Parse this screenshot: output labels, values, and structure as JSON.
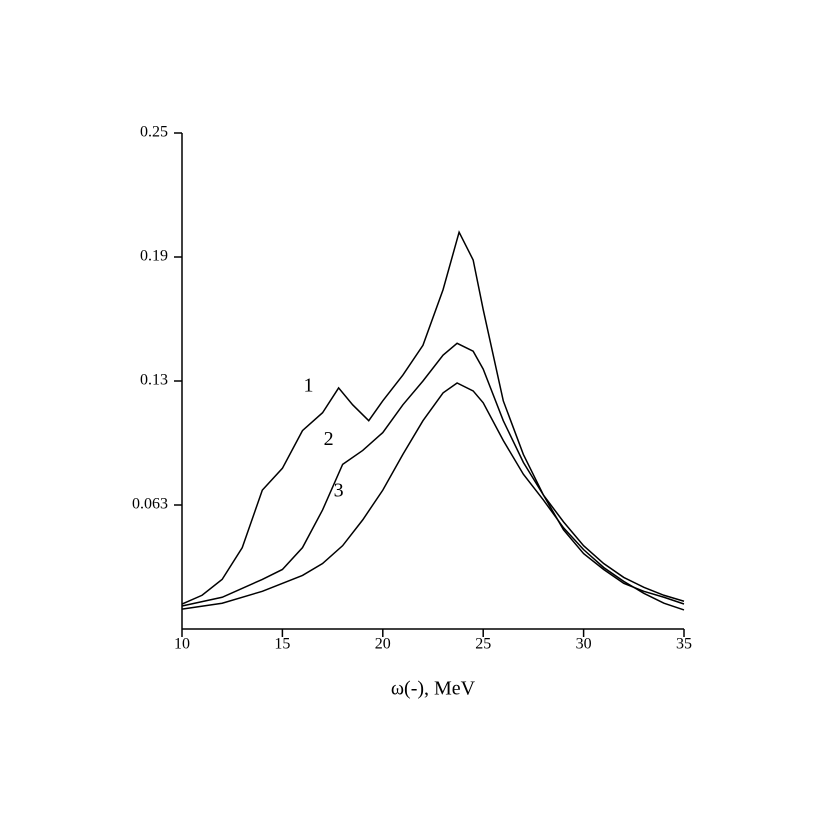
{
  "chart_data": {
    "type": "line",
    "x_label": "ω(-), MeV",
    "xlim": [
      10,
      35
    ],
    "xticks": [
      10,
      15,
      20,
      25,
      30,
      35
    ],
    "ylim": [
      0,
      0.25
    ],
    "yticks": [
      {
        "value": 0.0625,
        "label": "0.063"
      },
      {
        "value": 0.125,
        "label": "0.13"
      },
      {
        "value": 0.1875,
        "label": "0.19"
      },
      {
        "value": 0.25,
        "label": "0.25"
      }
    ],
    "color": "#000000",
    "series": [
      {
        "name": "1",
        "x": [
          10,
          11,
          12,
          13,
          14,
          15,
          16,
          17,
          17.8,
          18.5,
          19.3,
          20,
          21,
          22,
          23,
          23.8,
          24.5,
          25,
          26,
          27,
          28,
          29,
          30,
          31,
          32,
          33,
          34,
          35
        ],
        "values": [
          0.0126,
          0.017,
          0.025,
          0.041,
          0.07,
          0.081,
          0.1,
          0.109,
          0.1215,
          0.113,
          0.105,
          0.115,
          0.128,
          0.143,
          0.171,
          0.2,
          0.186,
          0.161,
          0.115,
          0.088,
          0.0675,
          0.05,
          0.038,
          0.03,
          0.023,
          0.019,
          0.016,
          0.0126
        ]
      },
      {
        "name": "2",
        "x": [
          10,
          12,
          14,
          15,
          16,
          17,
          18,
          19,
          20,
          21,
          22,
          23,
          23.7,
          24.5,
          25,
          26,
          27,
          28,
          29,
          30,
          31,
          32,
          33,
          34,
          35
        ],
        "values": [
          0.0116,
          0.016,
          0.025,
          0.03,
          0.041,
          0.06,
          0.083,
          0.09,
          0.099,
          0.113,
          0.125,
          0.138,
          0.144,
          0.14,
          0.131,
          0.105,
          0.084,
          0.0675,
          0.054,
          0.042,
          0.033,
          0.026,
          0.021,
          0.017,
          0.014
        ]
      },
      {
        "name": "3",
        "x": [
          10,
          12,
          14,
          16,
          17,
          18,
          19,
          20,
          21,
          22,
          23,
          23.7,
          24.5,
          25,
          26,
          27,
          28,
          29,
          30,
          31,
          32,
          33,
          34,
          35
        ],
        "values": [
          0.01,
          0.013,
          0.019,
          0.027,
          0.033,
          0.042,
          0.055,
          0.07,
          0.088,
          0.105,
          0.119,
          0.124,
          0.12,
          0.114,
          0.095,
          0.078,
          0.065,
          0.051,
          0.04,
          0.031,
          0.024,
          0.018,
          0.013,
          0.0096
        ]
      }
    ]
  }
}
